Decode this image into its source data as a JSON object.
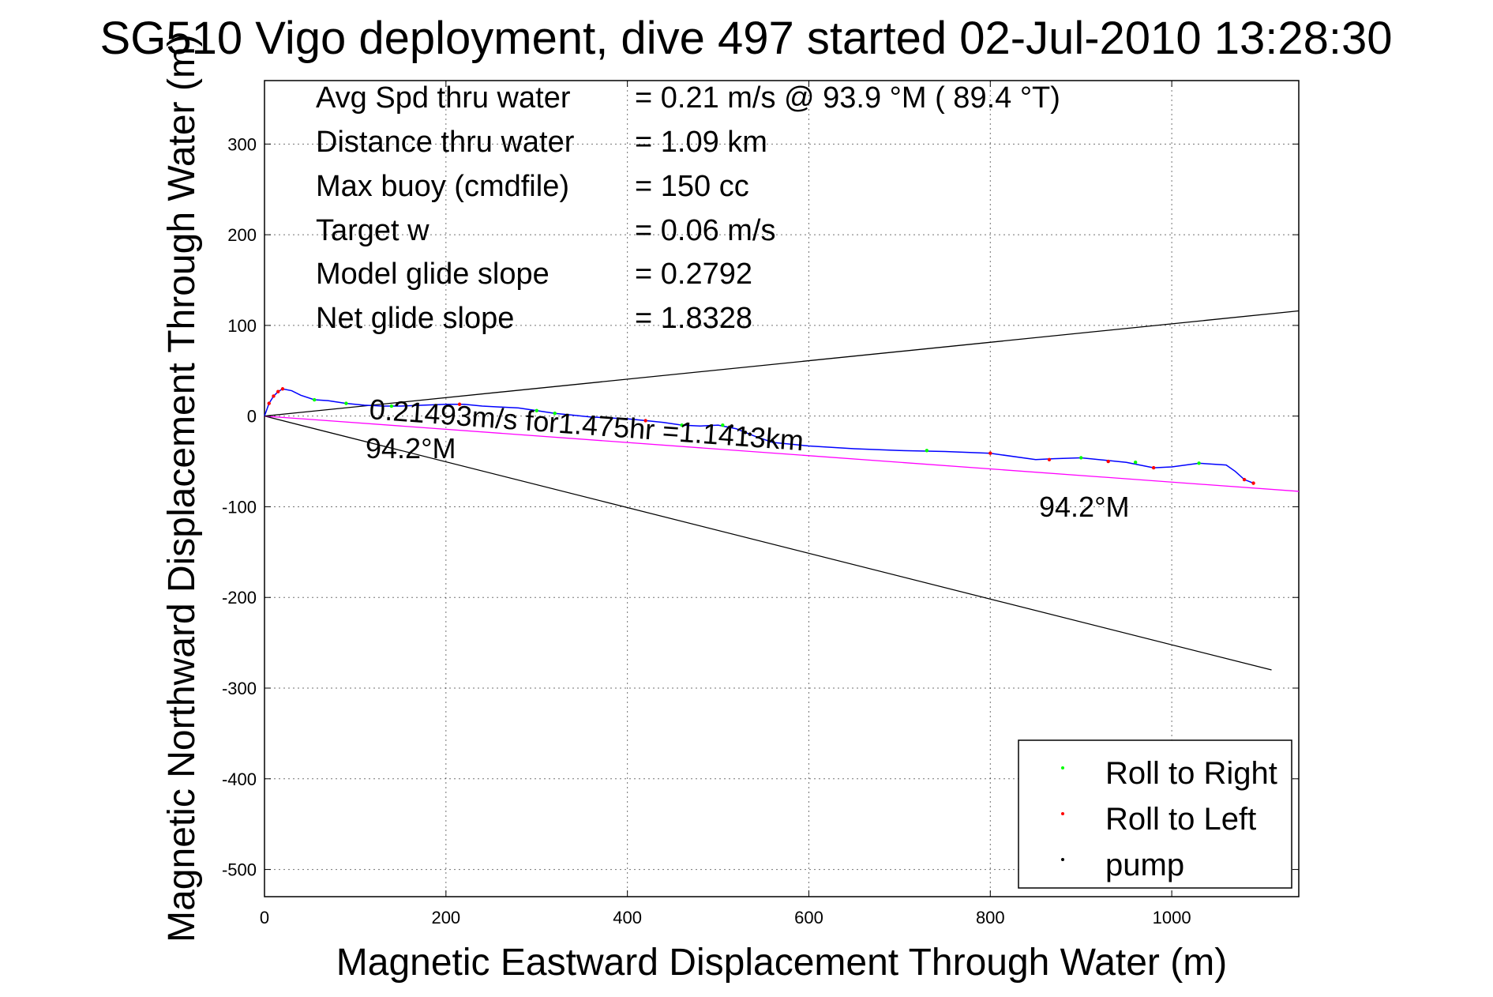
{
  "chart_data": {
    "type": "line",
    "title": "SG510 Vigo deployment, dive 497 started 02-Jul-2010 13:28:30",
    "xlabel": "Magnetic Eastward Displacement Through Water (m)",
    "ylabel": "Magnetic Northward Displacement Through Water (m)",
    "xlim": [
      0,
      1140
    ],
    "ylim": [
      -530,
      370
    ],
    "xticks": [
      0,
      200,
      400,
      600,
      800,
      1000
    ],
    "yticks": [
      -500,
      -400,
      -300,
      -200,
      -100,
      0,
      100,
      200,
      300
    ],
    "grid": true,
    "legend_position": "bottom-right",
    "info_rows": [
      {
        "label": "Avg Spd thru water",
        "value": "=  0.21 m/s @  93.9 °M ( 89.4 °T)"
      },
      {
        "label": "Distance thru water",
        "value": "=  1.09 km"
      },
      {
        "label": "Max buoy (cmdfile)",
        "value": "= 150 cc"
      },
      {
        "label": "Target w",
        "value": "= 0.06 m/s"
      },
      {
        "label": "Model glide slope",
        "value": "= 0.2792"
      },
      {
        "label": "Net glide slope",
        "value": "= 1.8328"
      }
    ],
    "annotations": {
      "speed_text": "0.21493m/s for1.475hr =1.1413km",
      "heading_left": "94.2°M",
      "heading_right": "94.2°M"
    },
    "track": {
      "color": "#0000ff",
      "x": [
        0,
        5,
        10,
        15,
        20,
        30,
        40,
        55,
        70,
        90,
        110,
        130,
        150,
        175,
        200,
        220,
        240,
        260,
        280,
        300,
        320,
        340,
        360,
        380,
        400,
        420,
        440,
        460,
        480,
        500,
        520,
        540,
        560,
        600,
        650,
        700,
        750,
        800,
        850,
        870,
        900,
        950,
        980,
        1000,
        1030,
        1060,
        1070,
        1080,
        1090
      ],
      "y": [
        0,
        14,
        22,
        27,
        30,
        28,
        23,
        18,
        17,
        14,
        12,
        11,
        11,
        12,
        13,
        13,
        11,
        10,
        9,
        6,
        3,
        1,
        -1,
        -2,
        -3,
        -5,
        -7,
        -10,
        -11,
        -10,
        -14,
        -22,
        -29,
        -33,
        -36,
        -38,
        -39,
        -41,
        -48,
        -47,
        -46,
        -51,
        -57,
        -56,
        -52,
        -54,
        -61,
        -70,
        -74
      ]
    },
    "lines": [
      {
        "name": "",
        "color": "#000000",
        "x": [
          0,
          1140
        ],
        "y": [
          0,
          116
        ]
      },
      {
        "name": "",
        "color": "#000000",
        "x": [
          0,
          1110
        ],
        "y": [
          0,
          -280
        ]
      },
      {
        "name": "",
        "color": "#ff00ff",
        "x": [
          0,
          1140
        ],
        "y": [
          0,
          -83
        ]
      }
    ],
    "series": [
      {
        "name": "Roll to Right",
        "color": "#00ff00",
        "x": [
          55,
          90,
          140,
          300,
          320,
          460,
          505,
          730,
          900,
          960,
          1030
        ],
        "y": [
          18,
          14,
          11,
          6,
          3,
          -10,
          -10,
          -38,
          -46,
          -51,
          -52
        ]
      },
      {
        "name": "Roll to Left",
        "color": "#ff0000",
        "x": [
          5,
          10,
          15,
          20,
          215,
          420,
          800,
          865,
          930,
          980,
          1080,
          1090
        ],
        "y": [
          14,
          22,
          27,
          30,
          13,
          -5,
          -41,
          -48,
          -50,
          -57,
          -70,
          -74
        ]
      },
      {
        "name": "pump",
        "color": "#000000",
        "x": [
          515,
          530,
          535
        ],
        "y": [
          -11,
          -18,
          -20
        ]
      }
    ]
  }
}
